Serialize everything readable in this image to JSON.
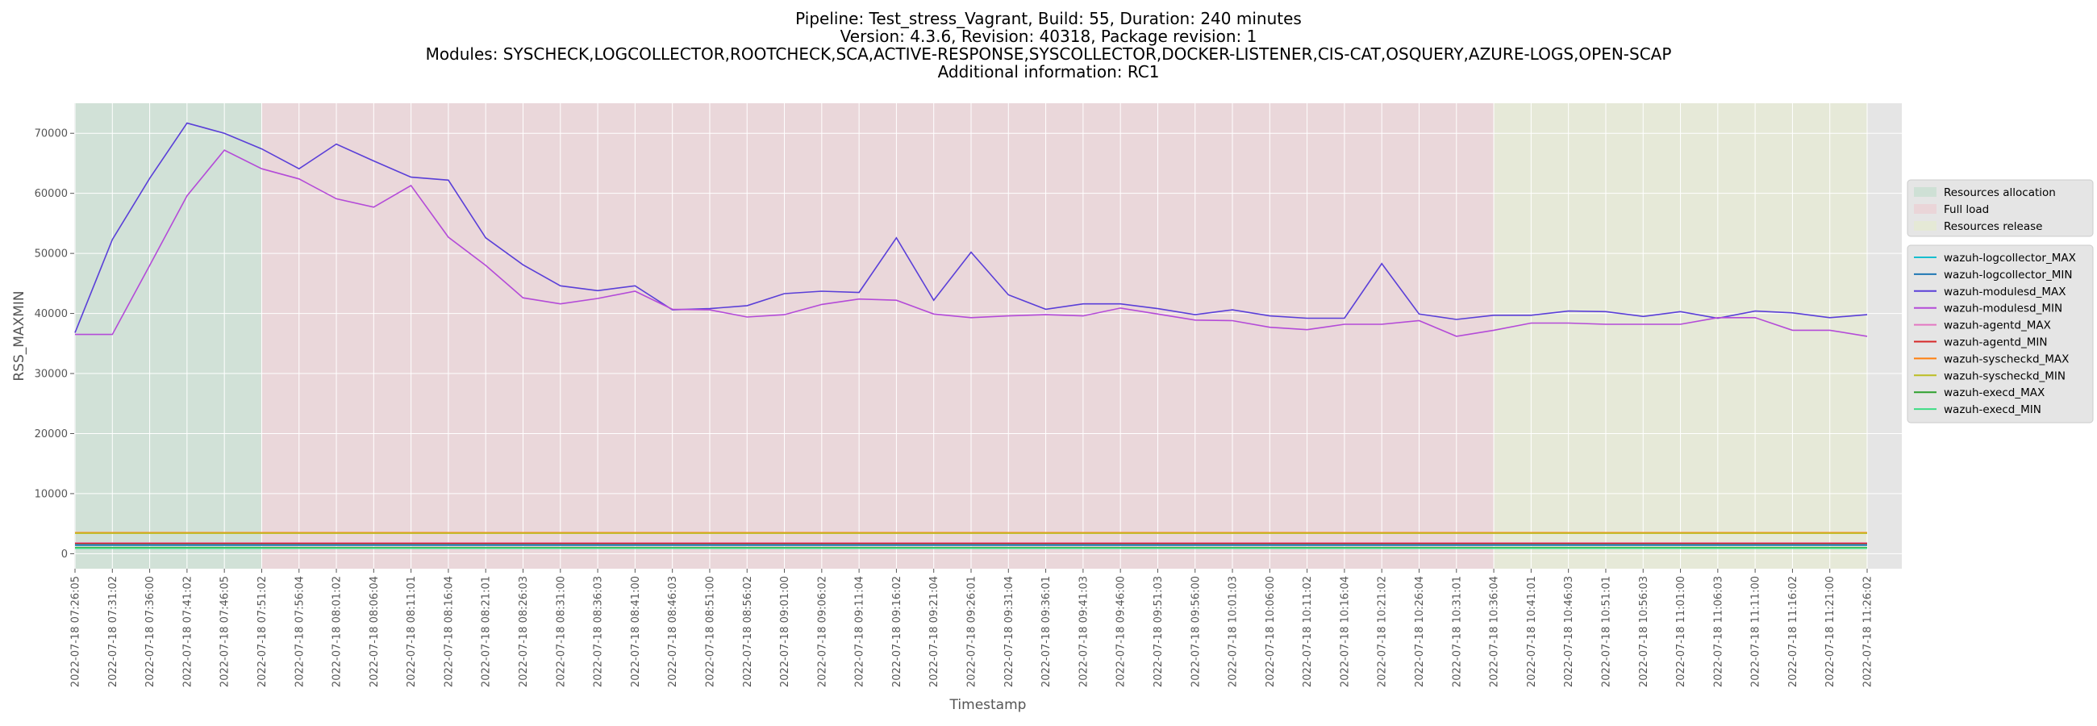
{
  "chart_data": {
    "type": "line",
    "title_lines": [
      "Pipeline: Test_stress_Vagrant, Build: 55, Duration: 240 minutes",
      "Version: 4.3.6, Revision: 40318, Package revision: 1",
      "Modules: SYSCHECK,LOGCOLLECTOR,ROOTCHECK,SCA,ACTIVE-RESPONSE,SYSCOLLECTOR,DOCKER-LISTENER,CIS-CAT,OSQUERY,AZURE-LOGS,OPEN-SCAP",
      "Additional information: RC1"
    ],
    "xlabel": "Timestamp",
    "ylabel": "RSS_MAXMIN",
    "ylim": [
      -2500,
      75000
    ],
    "yticks": [
      0,
      10000,
      20000,
      30000,
      40000,
      50000,
      60000,
      70000
    ],
    "grid": true,
    "legend_position": "right",
    "x": [
      "2022-07-18 07:26:05",
      "2022-07-18 07:31:02",
      "2022-07-18 07:36:00",
      "2022-07-18 07:41:02",
      "2022-07-18 07:46:05",
      "2022-07-18 07:51:02",
      "2022-07-18 07:56:04",
      "2022-07-18 08:01:02",
      "2022-07-18 08:06:04",
      "2022-07-18 08:11:01",
      "2022-07-18 08:16:04",
      "2022-07-18 08:21:01",
      "2022-07-18 08:26:03",
      "2022-07-18 08:31:00",
      "2022-07-18 08:36:03",
      "2022-07-18 08:41:00",
      "2022-07-18 08:46:03",
      "2022-07-18 08:51:00",
      "2022-07-18 08:56:02",
      "2022-07-18 09:01:00",
      "2022-07-18 09:06:02",
      "2022-07-18 09:11:04",
      "2022-07-18 09:16:02",
      "2022-07-18 09:21:04",
      "2022-07-18 09:26:01",
      "2022-07-18 09:31:04",
      "2022-07-18 09:36:01",
      "2022-07-18 09:41:03",
      "2022-07-18 09:46:00",
      "2022-07-18 09:51:03",
      "2022-07-18 09:56:00",
      "2022-07-18 10:01:03",
      "2022-07-18 10:06:00",
      "2022-07-18 10:11:02",
      "2022-07-18 10:16:04",
      "2022-07-18 10:21:02",
      "2022-07-18 10:26:04",
      "2022-07-18 10:31:01",
      "2022-07-18 10:36:04",
      "2022-07-18 10:41:01",
      "2022-07-18 10:46:03",
      "2022-07-18 10:51:01",
      "2022-07-18 10:56:03",
      "2022-07-18 11:01:00",
      "2022-07-18 11:06:03",
      "2022-07-18 11:11:00",
      "2022-07-18 11:16:02",
      "2022-07-18 11:21:00",
      "2022-07-18 11:26:02"
    ],
    "phases": [
      {
        "name": "Resources allocation",
        "from": 0,
        "to": 5,
        "color": "#b7dcc6"
      },
      {
        "name": "Full load",
        "from": 5,
        "to": 38,
        "color": "#f0c6cb"
      },
      {
        "name": "Resources release",
        "from": 38,
        "to": 48,
        "color": "#e6edc8"
      }
    ],
    "series": [
      {
        "name": "wazuh-logcollector_MAX",
        "color": "#17becf",
        "values": [
          1500,
          1500,
          1500,
          1500,
          1500,
          1500,
          1500,
          1500,
          1500,
          1500,
          1500,
          1500,
          1500,
          1500,
          1500,
          1500,
          1500,
          1500,
          1500,
          1500,
          1500,
          1500,
          1500,
          1500,
          1500,
          1500,
          1500,
          1500,
          1500,
          1500,
          1500,
          1500,
          1500,
          1500,
          1500,
          1500,
          1500,
          1500,
          1500,
          1500,
          1500,
          1500,
          1500,
          1500,
          1500,
          1500,
          1500,
          1500,
          1500
        ]
      },
      {
        "name": "wazuh-logcollector_MIN",
        "color": "#1f77b4",
        "values": [
          1400,
          1400,
          1400,
          1400,
          1400,
          1400,
          1400,
          1400,
          1400,
          1400,
          1400,
          1400,
          1400,
          1400,
          1400,
          1400,
          1400,
          1400,
          1400,
          1400,
          1400,
          1400,
          1400,
          1400,
          1400,
          1400,
          1400,
          1400,
          1400,
          1400,
          1400,
          1400,
          1400,
          1400,
          1400,
          1400,
          1400,
          1400,
          1400,
          1400,
          1400,
          1400,
          1400,
          1400,
          1400,
          1400,
          1400,
          1400,
          1400
        ]
      },
      {
        "name": "wazuh-modulesd_MAX",
        "color": "#5a3fd8",
        "values": [
          36800,
          52300,
          62500,
          71700,
          70000,
          67400,
          64100,
          68200,
          65400,
          62700,
          62200,
          52600,
          48100,
          44600,
          43800,
          44600,
          40600,
          40800,
          41300,
          43300,
          43700,
          43500,
          52600,
          42200,
          50200,
          43100,
          40700,
          41600,
          41600,
          40800,
          39800,
          40600,
          39600,
          39200,
          39200,
          48300,
          39900,
          39000,
          39700,
          39700,
          40400,
          40300,
          39500,
          40300,
          39200,
          40400,
          40100,
          39300,
          39800
        ]
      },
      {
        "name": "wazuh-modulesd_MIN",
        "color": "#b44bd8",
        "values": [
          36500,
          36500,
          48000,
          59600,
          67200,
          64100,
          62400,
          59100,
          57700,
          61300,
          52700,
          48000,
          42600,
          41600,
          42500,
          43700,
          40700,
          40600,
          39400,
          39800,
          41500,
          42400,
          42200,
          39900,
          39300,
          39600,
          39800,
          39600,
          40900,
          39900,
          38900,
          38800,
          37700,
          37300,
          38200,
          38200,
          38800,
          36200,
          37200,
          38400,
          38400,
          38200,
          38200,
          38200,
          39300,
          39300,
          37200,
          37200,
          36200
        ]
      },
      {
        "name": "wazuh-agentd_MAX",
        "color": "#e377c2",
        "values": [
          1800,
          1800,
          1800,
          1800,
          1800,
          1800,
          1800,
          1800,
          1800,
          1800,
          1800,
          1800,
          1800,
          1800,
          1800,
          1800,
          1800,
          1800,
          1800,
          1800,
          1800,
          1800,
          1800,
          1800,
          1800,
          1800,
          1800,
          1800,
          1800,
          1800,
          1800,
          1800,
          1800,
          1800,
          1800,
          1800,
          1800,
          1800,
          1800,
          1800,
          1800,
          1800,
          1800,
          1800,
          1800,
          1800,
          1800,
          1800,
          1800
        ]
      },
      {
        "name": "wazuh-agentd_MIN",
        "color": "#d62728",
        "values": [
          1700,
          1700,
          1700,
          1700,
          1700,
          1700,
          1700,
          1700,
          1700,
          1700,
          1700,
          1700,
          1700,
          1700,
          1700,
          1700,
          1700,
          1700,
          1700,
          1700,
          1700,
          1700,
          1700,
          1700,
          1700,
          1700,
          1700,
          1700,
          1700,
          1700,
          1700,
          1700,
          1700,
          1700,
          1700,
          1700,
          1700,
          1700,
          1700,
          1700,
          1700,
          1700,
          1700,
          1700,
          1700,
          1700,
          1700,
          1700,
          1700
        ]
      },
      {
        "name": "wazuh-syscheckd_MAX",
        "color": "#ff7f0e",
        "values": [
          3500,
          3500,
          3500,
          3500,
          3500,
          3500,
          3500,
          3500,
          3500,
          3500,
          3500,
          3500,
          3500,
          3500,
          3500,
          3500,
          3500,
          3500,
          3500,
          3500,
          3500,
          3500,
          3500,
          3500,
          3500,
          3500,
          3500,
          3500,
          3500,
          3500,
          3500,
          3500,
          3500,
          3500,
          3500,
          3500,
          3500,
          3500,
          3500,
          3500,
          3500,
          3500,
          3500,
          3500,
          3500,
          3500,
          3500,
          3500,
          3500
        ]
      },
      {
        "name": "wazuh-syscheckd_MIN",
        "color": "#bcbd22",
        "values": [
          3400,
          3400,
          3400,
          3400,
          3400,
          3400,
          3400,
          3400,
          3400,
          3400,
          3400,
          3400,
          3400,
          3400,
          3400,
          3400,
          3400,
          3400,
          3400,
          3400,
          3400,
          3400,
          3400,
          3400,
          3400,
          3400,
          3400,
          3400,
          3400,
          3400,
          3400,
          3400,
          3400,
          3400,
          3400,
          3400,
          3400,
          3400,
          3400,
          3400,
          3400,
          3400,
          3400,
          3400,
          3400,
          3400,
          3400,
          3400,
          3400
        ]
      },
      {
        "name": "wazuh-execd_MAX",
        "color": "#2ca02c",
        "values": [
          1000,
          1000,
          1000,
          1000,
          1000,
          1000,
          1000,
          1000,
          1000,
          1000,
          1000,
          1000,
          1000,
          1000,
          1000,
          1000,
          1000,
          1000,
          1000,
          1000,
          1000,
          1000,
          1000,
          1000,
          1000,
          1000,
          1000,
          1000,
          1000,
          1000,
          1000,
          1000,
          1000,
          1000,
          1000,
          1000,
          1000,
          1000,
          1000,
          1000,
          1000,
          1000,
          1000,
          1000,
          1000,
          1000,
          1000,
          1000,
          1000
        ]
      },
      {
        "name": "wazuh-execd_MIN",
        "color": "#3ddc84",
        "values": [
          900,
          900,
          900,
          900,
          900,
          900,
          900,
          900,
          900,
          900,
          900,
          900,
          900,
          900,
          900,
          900,
          900,
          900,
          900,
          900,
          900,
          900,
          900,
          900,
          900,
          900,
          900,
          900,
          900,
          900,
          900,
          900,
          900,
          900,
          900,
          900,
          900,
          900,
          900,
          900,
          900,
          900,
          900,
          900,
          900,
          900,
          900,
          900,
          900
        ]
      }
    ]
  }
}
